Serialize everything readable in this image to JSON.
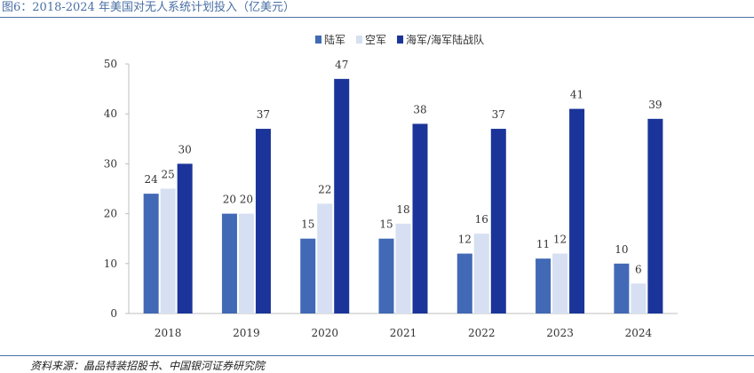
{
  "figure": {
    "title": "图6：2018-2024 年美国对无人系统计划投入（亿美元）",
    "source": "资料来源：晶品特装招股书、中国银河证券研究院"
  },
  "chart_data": {
    "type": "bar",
    "title": "2018-2024 年美国对无人系统计划投入（亿美元）",
    "xlabel": "",
    "ylabel": "",
    "categories": [
      "2018",
      "2019",
      "2020",
      "2021",
      "2022",
      "2023",
      "2024"
    ],
    "series": [
      {
        "name": "陆军",
        "color": "#4169b5",
        "values": [
          24,
          20,
          15,
          15,
          12,
          11,
          10
        ]
      },
      {
        "name": "空军",
        "color": "#d6e0f2",
        "values": [
          25,
          20,
          22,
          18,
          16,
          12,
          6
        ]
      },
      {
        "name": "海军/海军陆战队",
        "color": "#1a3499",
        "values": [
          30,
          37,
          47,
          38,
          37,
          41,
          39
        ]
      }
    ],
    "ylim": [
      0,
      50
    ],
    "yticks": [
      0,
      10,
      20,
      30,
      40,
      50
    ],
    "legend_position": "top-right",
    "grid": false
  }
}
